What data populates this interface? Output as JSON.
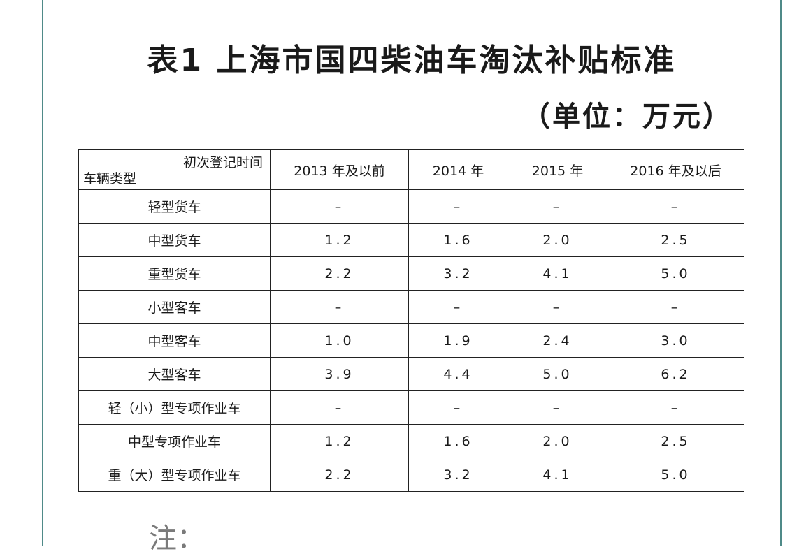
{
  "title": "表1 上海市国四柴油车淘汰补贴标准",
  "unit": "（单位：万元）",
  "table": {
    "corner_top": "初次登记时间",
    "corner_bottom": "车辆类型",
    "columns": [
      "2013 年及以前",
      "2014 年",
      "2015 年",
      "2016 年及以后"
    ],
    "rows": [
      {
        "type": "轻型货车",
        "values": [
          "–",
          "–",
          "–",
          "–"
        ]
      },
      {
        "type": "中型货车",
        "values": [
          "1.2",
          "1.6",
          "2.0",
          "2.5"
        ]
      },
      {
        "type": "重型货车",
        "values": [
          "2.2",
          "3.2",
          "4.1",
          "5.0"
        ]
      },
      {
        "type": "小型客车",
        "values": [
          "–",
          "–",
          "–",
          "–"
        ]
      },
      {
        "type": "中型客车",
        "values": [
          "1.0",
          "1.9",
          "2.4",
          "3.0"
        ]
      },
      {
        "type": "大型客车",
        "values": [
          "3.9",
          "4.4",
          "5.0",
          "6.2"
        ]
      },
      {
        "type": "轻（小）型专项作业车",
        "values": [
          "–",
          "–",
          "–",
          "–"
        ]
      },
      {
        "type": "中型专项作业车",
        "values": [
          "1.2",
          "1.6",
          "2.0",
          "2.5"
        ]
      },
      {
        "type": "重（大）型专项作业车",
        "values": [
          "2.2",
          "3.2",
          "4.1",
          "5.0"
        ]
      }
    ]
  },
  "note": "注："
}
